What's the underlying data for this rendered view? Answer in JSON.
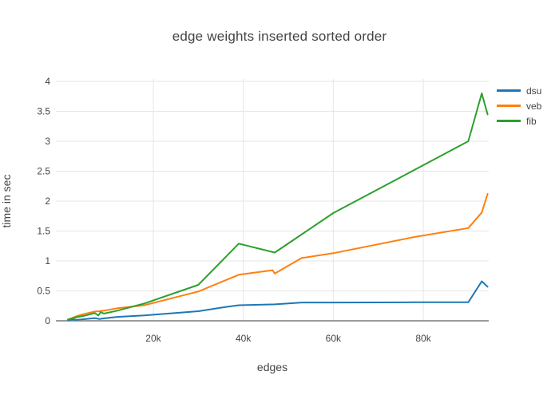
{
  "chart_data": {
    "type": "line",
    "title": "edge weights inserted sorted order",
    "xlabel": "edges",
    "ylabel": "time in sec",
    "grid": true,
    "background": "#ffffff",
    "grid_color": "#e6e6e6",
    "zeroline_color": "#9a9a9a",
    "text_color": "#444444",
    "legend_position": "right",
    "x_range": [
      -1650,
      94550
    ],
    "y_range": [
      -0.013,
      4.04
    ],
    "x_ticks": {
      "values": [
        20000,
        40000,
        60000,
        80000
      ],
      "labels": [
        "20k",
        "40k",
        "60k",
        "80k"
      ]
    },
    "y_ticks": {
      "values": [
        0,
        0.5,
        1,
        1.5,
        2,
        2.5,
        3,
        3.5,
        4
      ],
      "labels": [
        "0",
        "0.5",
        "1",
        "1.5",
        "2",
        "2.5",
        "3",
        "3.5",
        "4"
      ]
    },
    "series": [
      {
        "name": "dsu",
        "color": "#1f77b4",
        "points": [
          [
            1000,
            0.01
          ],
          [
            2000,
            0.02
          ],
          [
            3000,
            0.015
          ],
          [
            5000,
            0.03
          ],
          [
            7000,
            0.045
          ],
          [
            8000,
            0.03
          ],
          [
            9000,
            0.04
          ],
          [
            12000,
            0.065
          ],
          [
            18000,
            0.09
          ],
          [
            30000,
            0.16
          ],
          [
            36000,
            0.23
          ],
          [
            39000,
            0.26
          ],
          [
            47000,
            0.275
          ],
          [
            53000,
            0.305
          ],
          [
            60000,
            0.305
          ],
          [
            78000,
            0.31
          ],
          [
            90000,
            0.31
          ],
          [
            93000,
            0.66
          ],
          [
            94300,
            0.57
          ]
        ]
      },
      {
        "name": "veb",
        "color": "#ff7f0e",
        "points": [
          [
            1000,
            0.02
          ],
          [
            2000,
            0.05
          ],
          [
            3000,
            0.08
          ],
          [
            5000,
            0.12
          ],
          [
            7000,
            0.155
          ],
          [
            8000,
            0.16
          ],
          [
            9000,
            0.17
          ],
          [
            12000,
            0.21
          ],
          [
            18000,
            0.26
          ],
          [
            30000,
            0.49
          ],
          [
            39000,
            0.77
          ],
          [
            45000,
            0.83
          ],
          [
            46500,
            0.845
          ],
          [
            47000,
            0.79
          ],
          [
            53000,
            1.05
          ],
          [
            60000,
            1.13
          ],
          [
            78000,
            1.4
          ],
          [
            90000,
            1.55
          ],
          [
            93000,
            1.81
          ],
          [
            94300,
            2.12
          ]
        ]
      },
      {
        "name": "fib",
        "color": "#2ca02c",
        "points": [
          [
            1000,
            0.02
          ],
          [
            2000,
            0.04
          ],
          [
            3000,
            0.06
          ],
          [
            5000,
            0.09
          ],
          [
            7000,
            0.13
          ],
          [
            7800,
            0.09
          ],
          [
            8300,
            0.145
          ],
          [
            9000,
            0.12
          ],
          [
            12000,
            0.17
          ],
          [
            18000,
            0.29
          ],
          [
            30000,
            0.6
          ],
          [
            39000,
            1.29
          ],
          [
            47000,
            1.14
          ],
          [
            60000,
            1.8
          ],
          [
            78000,
            2.52
          ],
          [
            90000,
            3.0
          ],
          [
            93000,
            3.8
          ],
          [
            94300,
            3.45
          ]
        ]
      }
    ]
  }
}
